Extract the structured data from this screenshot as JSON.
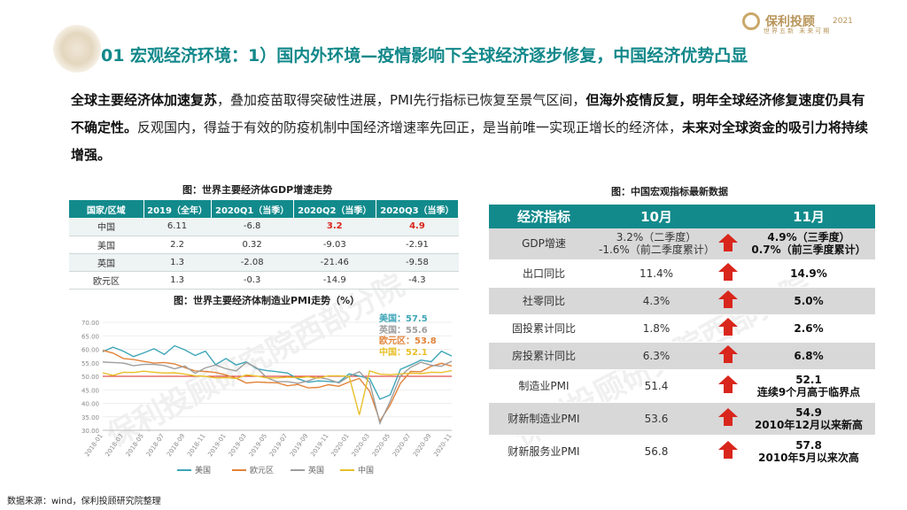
{
  "header": {
    "title": "01 宏观经济环境：1）国内外环境—疫情影响下全球经济逐步修复，中国经济优势凸显",
    "logo_text": "保利投顾",
    "logo_sub": "世界五新 未来可期",
    "logo_year": "2021"
  },
  "intro": {
    "p1_bold": "全球主要经济体加速复苏",
    "p1": "，叠加疫苗取得突破性进展，PMI先行指标已恢复至景气区间，",
    "p2_bold": "但海外疫情反复，明年全球经济修复速度仍具有不确定性。",
    "p3": "反观国内，得益于有效的防疫机制中国经济增速率先回正，是当前唯一实现正增长的经济体，",
    "p4_bold": "未来对全球资金的吸引力将持续增强。"
  },
  "gdp_table": {
    "caption": "图：世界主要经济体GDP增速走势",
    "headers": [
      "国家/区域",
      "2019（全年）",
      "2020Q1（当季）",
      "2020Q2（当季）",
      "2020Q3（当季）"
    ],
    "rows": [
      [
        "中国",
        "6.11",
        "-6.8",
        "3.2",
        "4.9"
      ],
      [
        "美国",
        "2.2",
        "0.32",
        "-9.03",
        "-2.91"
      ],
      [
        "英国",
        "1.3",
        "-2.08",
        "-21.46",
        "-9.58"
      ],
      [
        "欧元区",
        "1.3",
        "-0.3",
        "-14.9",
        "-4.3"
      ]
    ]
  },
  "pmi_chart": {
    "caption": "图：世界主要经济体制造业PMI走势（%）",
    "latest": [
      {
        "label": "美国：57.5",
        "color": "#3ea6b8"
      },
      {
        "label": "英国：55.6",
        "color": "#9e9e9e"
      },
      {
        "label": "欧元区：53.8",
        "color": "#e2833a"
      },
      {
        "label": "中国：52.1",
        "color": "#e8c02a"
      }
    ]
  },
  "chart_data": {
    "type": "line",
    "title": "图：世界主要经济体制造业PMI走势（%）",
    "ylim": [
      30,
      70
    ],
    "yticks": [
      "70.00",
      "65.00",
      "60.00",
      "55.00",
      "50.00",
      "45.00",
      "40.00",
      "35.00",
      "30.00"
    ],
    "x": [
      "2018-01",
      "2018-02",
      "2018-03",
      "2018-04",
      "2018-05",
      "2018-06",
      "2018-07",
      "2018-08",
      "2018-09",
      "2018-10",
      "2018-11",
      "2018-12",
      "2019-01",
      "2019-02",
      "2019-03",
      "2019-04",
      "2019-05",
      "2019-06",
      "2019-07",
      "2019-08",
      "2019-09",
      "2019-10",
      "2019-11",
      "2019-12",
      "2020-01",
      "2020-02",
      "2020-03",
      "2020-04",
      "2020-05",
      "2020-06",
      "2020-07",
      "2020-08",
      "2020-09",
      "2020-10",
      "2020-11"
    ],
    "xticks": [
      "2018-01",
      "2018-03",
      "2018-05",
      "2018-07",
      "2018-09",
      "2018-11",
      "2019-01",
      "2019-03",
      "2019-05",
      "2019-07",
      "2019-09",
      "2019-11",
      "2020-01",
      "2020-03",
      "2020-05",
      "2020-07",
      "2020-09",
      "2020-11"
    ],
    "series": [
      {
        "name": "美国",
        "color": "#3ea6b8",
        "values": [
          59.1,
          60.8,
          59.3,
          57.3,
          58.7,
          60.2,
          58.1,
          61.3,
          59.8,
          57.7,
          59.3,
          54.3,
          56.6,
          54.2,
          55.3,
          52.8,
          52.1,
          51.7,
          51.2,
          49.1,
          47.8,
          48.3,
          48.1,
          47.8,
          50.9,
          50.1,
          49.1,
          41.5,
          43.1,
          52.6,
          54.2,
          56.0,
          55.4,
          59.3,
          57.5
        ]
      },
      {
        "name": "欧元区",
        "color": "#e2833a",
        "values": [
          59.6,
          58.6,
          56.6,
          56.2,
          55.5,
          54.9,
          55.1,
          54.6,
          53.2,
          52.0,
          51.8,
          51.4,
          50.5,
          49.3,
          47.5,
          47.9,
          47.7,
          47.6,
          46.5,
          47.0,
          45.7,
          45.9,
          46.9,
          46.3,
          47.9,
          49.2,
          44.5,
          33.4,
          39.4,
          47.4,
          51.8,
          51.7,
          53.7,
          54.8,
          53.8
        ]
      },
      {
        "name": "英国",
        "color": "#9e9e9e",
        "values": [
          55.3,
          55.1,
          54.9,
          53.9,
          54.4,
          54.4,
          54.0,
          52.8,
          53.8,
          51.1,
          53.1,
          54.2,
          52.8,
          52.0,
          55.1,
          53.1,
          49.4,
          48.0,
          48.0,
          47.4,
          48.3,
          49.6,
          48.9,
          47.5,
          50.0,
          51.7,
          47.8,
          32.6,
          40.7,
          50.1,
          53.3,
          55.2,
          54.1,
          53.7,
          55.6
        ]
      },
      {
        "name": "中国",
        "color": "#e8c02a",
        "values": [
          51.3,
          50.3,
          51.5,
          51.4,
          51.9,
          51.5,
          51.2,
          51.3,
          50.8,
          50.2,
          50.0,
          49.4,
          49.5,
          49.2,
          50.5,
          50.1,
          49.4,
          49.4,
          49.7,
          49.5,
          49.8,
          49.3,
          50.2,
          50.2,
          50.0,
          35.7,
          52.0,
          50.8,
          50.6,
          50.9,
          51.1,
          51.0,
          51.5,
          51.4,
          52.1
        ]
      }
    ],
    "reference_line": 50
  },
  "macro_table": {
    "caption": "图：中国宏观指标最新数据",
    "headers": [
      "经济指标",
      "10月",
      "11月"
    ],
    "rows": [
      {
        "name": "GDP增速",
        "oct": "3.2%（二季度）\n-1.6%（前二季度累计）",
        "nov": "4.9%（三季度）\n0.7%（前三季度累计）"
      },
      {
        "name": "出口同比",
        "oct": "11.4%",
        "nov": "14.9%"
      },
      {
        "name": "社零同比",
        "oct": "4.3%",
        "nov": "5.0%"
      },
      {
        "name": "固投累计同比",
        "oct": "1.8%",
        "nov": "2.6%"
      },
      {
        "name": "房投累计同比",
        "oct": "6.3%",
        "nov": "6.8%"
      },
      {
        "name": "制造业PMI",
        "oct": "51.4",
        "nov": "52.1\n连续9个月高于临界点"
      },
      {
        "name": "财新制造业PMI",
        "oct": "53.6",
        "nov": "54.9\n2010年12月以来新高"
      },
      {
        "name": "财新服务业PMI",
        "oct": "56.8",
        "nov": "57.8\n2010年5月以来次高"
      }
    ],
    "arrow_color": "#d9261c"
  },
  "source": "数据来源：wind，保利投顾研究院整理",
  "watermark": "保利投顾研究院西部分院"
}
